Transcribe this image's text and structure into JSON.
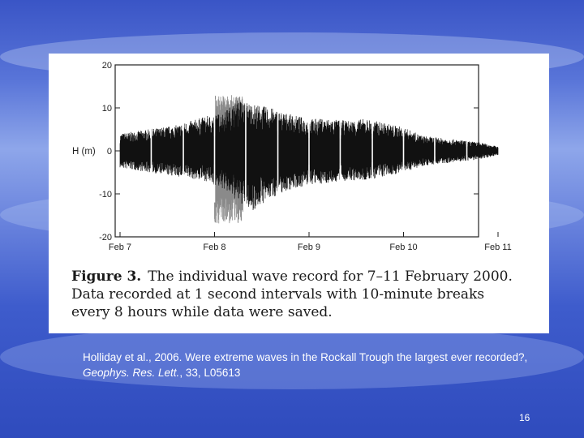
{
  "slide": {
    "number": "16",
    "citation_plain": "Holliday et al., 2006. Were extreme waves in the Rockall Trough the largest ever recorded?, ",
    "citation_journal": "Geophys. Res. Lett.",
    "citation_tail": ", 33, L05613"
  },
  "figure": {
    "caption_label": "Figure 3.",
    "caption_text": "The individual wave record for 7–11 February 2000. Data recorded at 1 second intervals with 10-minute breaks every 8 hours while data were saved."
  },
  "colors": {
    "signal": "#111111",
    "extreme": "#8a8a8a",
    "axis": "#222222"
  },
  "chart_data": {
    "type": "line",
    "ylabel": "H (m)",
    "xlabel": "",
    "x_tick_labels": [
      "Feb 7",
      "Feb 8",
      "Feb 9",
      "Feb 10",
      "Feb 11"
    ],
    "x_ticks": [
      0,
      1,
      2,
      3,
      4
    ],
    "xlim": [
      0,
      4
    ],
    "y_ticks": [
      20,
      10,
      0,
      -10,
      -20
    ],
    "y_tick_labels": [
      "20",
      "10",
      "0",
      "-10",
      "-20"
    ],
    "ylim": [
      -20,
      20
    ],
    "grid": false,
    "envelope": {
      "x": [
        0,
        0.3,
        0.6,
        0.9,
        1.1,
        1.25,
        1.4,
        1.6,
        1.8,
        2.0,
        2.2,
        2.4,
        2.6,
        2.8,
        3.0,
        3.2,
        3.4,
        3.6,
        3.8,
        4.0
      ],
      "upper": [
        4,
        5,
        6,
        8,
        9,
        12,
        11,
        10,
        8.5,
        7.5,
        7.5,
        7,
        7.5,
        6.5,
        5.5,
        3.5,
        3,
        2.5,
        2,
        1
      ],
      "lower": [
        -4,
        -5,
        -6,
        -7,
        -9,
        -12,
        -14,
        -11,
        -9,
        -8,
        -7.5,
        -7,
        -7,
        -6,
        -5,
        -3.5,
        -3,
        -2.5,
        -2,
        -1
      ]
    },
    "gaps_x": [
      0.33,
      0.67,
      1.0,
      1.33,
      1.67,
      2.0,
      2.33,
      2.67,
      3.0,
      3.33,
      3.67
    ],
    "extreme_event": {
      "x": [
        1.0,
        1.3
      ],
      "upper": 13,
      "lower": -17
    }
  }
}
